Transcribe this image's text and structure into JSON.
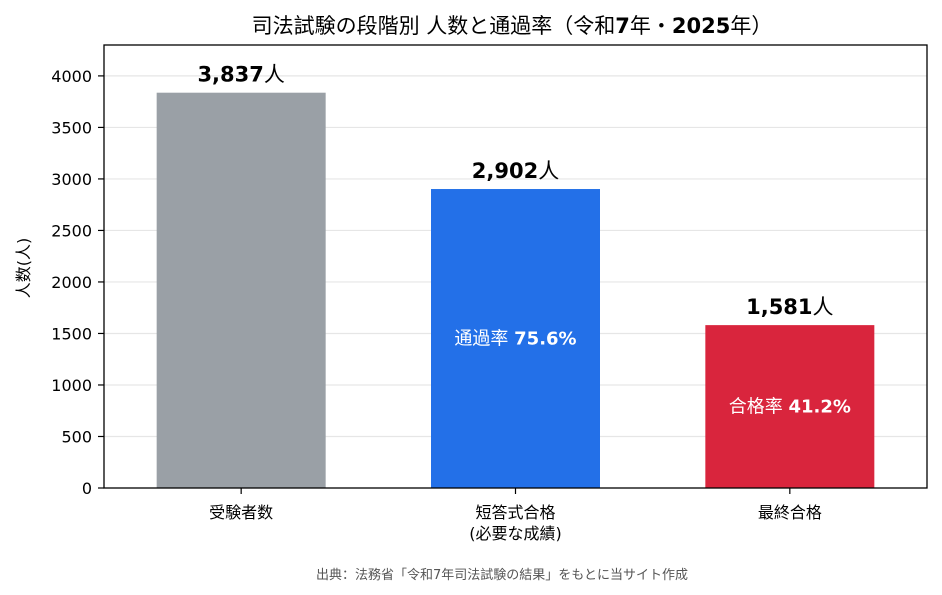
{
  "chart_data": {
    "type": "bar",
    "title_parts": [
      {
        "text": "司法試験の段階別 人数と通過率（令和",
        "bold": false
      },
      {
        "text": "7",
        "bold": true
      },
      {
        "text": "年・",
        "bold": false
      },
      {
        "text": "2025",
        "bold": true
      },
      {
        "text": "年）",
        "bold": false
      }
    ],
    "ylabel": "人数(人)",
    "ylim": [
      0,
      4300
    ],
    "yticks": [
      0,
      500,
      1000,
      1500,
      2000,
      2500,
      3000,
      3500,
      4000
    ],
    "grid": true,
    "categories": [
      [
        "受験者数"
      ],
      [
        "短答式合格",
        "(必要な成績)"
      ],
      [
        "最終合格"
      ]
    ],
    "values": [
      3837,
      2902,
      1581
    ],
    "value_labels": [
      {
        "number": "3,837",
        "unit": "人"
      },
      {
        "number": "2,902",
        "unit": "人"
      },
      {
        "number": "1,581",
        "unit": "人"
      }
    ],
    "rate_labels": [
      null,
      {
        "label": "通過率",
        "value": "75.6%"
      },
      {
        "label": "合格率",
        "value": "41.2%"
      }
    ],
    "colors": [
      "#9aa0a6",
      "#2370e8",
      "#d9253d"
    ]
  },
  "source": "出典：法務省「令和7年司法試験の結果」をもとに当サイト作成"
}
